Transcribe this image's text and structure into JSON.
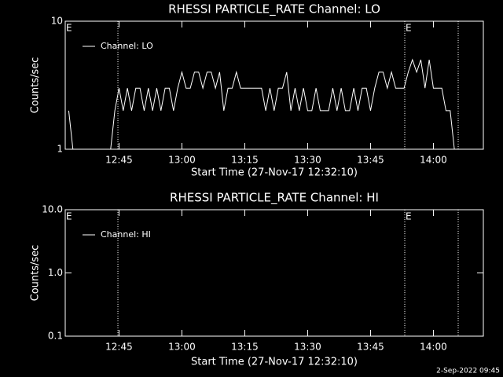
{
  "chart_data": [
    {
      "type": "line",
      "title": "RHESSI PARTICLE_RATE Channel: LO",
      "xlabel": "Start Time (27-Nov-17 12:32:10)",
      "ylabel": "Counts/sec",
      "xlim": [
        "12:32:10",
        "14:11:55"
      ],
      "xticks": [
        "12:45",
        "13:00",
        "13:15",
        "13:30",
        "13:45",
        "14:00"
      ],
      "ylim": [
        1,
        10
      ],
      "yticks": [
        1,
        10
      ],
      "log_y": true,
      "legend": "upper left",
      "vlines": [
        "12:44:44",
        "13:53:10",
        "14:05:55"
      ],
      "annotations": [
        {
          "text": "E",
          "x": "12:32:10"
        },
        {
          "text": "E",
          "x": "13:53:10"
        }
      ],
      "x": [
        "12:33",
        "12:34",
        "12:35",
        "12:36",
        "12:37",
        "12:38",
        "12:39",
        "12:40",
        "12:41",
        "12:42",
        "12:43",
        "12:44",
        "12:45",
        "12:46",
        "12:47",
        "12:48",
        "12:49",
        "12:50",
        "12:51",
        "12:52",
        "12:53",
        "12:54",
        "12:55",
        "12:56",
        "12:57",
        "12:58",
        "12:59",
        "13:00",
        "13:01",
        "13:02",
        "13:03",
        "13:04",
        "13:05",
        "13:06",
        "13:07",
        "13:08",
        "13:09",
        "13:10",
        "13:11",
        "13:12",
        "13:13",
        "13:14",
        "13:15",
        "13:16",
        "13:17",
        "13:18",
        "13:19",
        "13:20",
        "13:21",
        "13:22",
        "13:23",
        "13:24",
        "13:25",
        "13:26",
        "13:27",
        "13:28",
        "13:29",
        "13:30",
        "13:31",
        "13:32",
        "13:33",
        "13:34",
        "13:35",
        "13:36",
        "13:37",
        "13:38",
        "13:39",
        "13:40",
        "13:41",
        "13:42",
        "13:43",
        "13:44",
        "13:45",
        "13:46",
        "13:47",
        "13:48",
        "13:49",
        "13:50",
        "13:51",
        "13:52",
        "13:53",
        "13:54",
        "13:55",
        "13:56",
        "13:57",
        "13:58",
        "13:59",
        "14:00",
        "14:01",
        "14:02",
        "14:03",
        "14:04",
        "14:05"
      ],
      "series": [
        {
          "name": "Channel: LO",
          "color": "#ffffff",
          "values": [
            2,
            1,
            1,
            1,
            1,
            1,
            1,
            1,
            1,
            1,
            1,
            2,
            3,
            2,
            3,
            2,
            3,
            3,
            2,
            3,
            2,
            3,
            2,
            3,
            3,
            2,
            3,
            4,
            3,
            3,
            4,
            4,
            3,
            4,
            4,
            3,
            4,
            2,
            3,
            3,
            4,
            3,
            3,
            3,
            3,
            3,
            3,
            2,
            3,
            2,
            3,
            3,
            4,
            2,
            3,
            2,
            3,
            2,
            2,
            3,
            2,
            2,
            2,
            3,
            2,
            3,
            2,
            2,
            3,
            2,
            3,
            3,
            2,
            3,
            4,
            4,
            3,
            4,
            3,
            3,
            3,
            4,
            5,
            4,
            5,
            3,
            5,
            3,
            3,
            3,
            2,
            2,
            1
          ]
        }
      ]
    },
    {
      "type": "line",
      "title": "RHESSI PARTICLE_RATE Channel: HI",
      "xlabel": "Start Time (27-Nov-17 12:32:10)",
      "ylabel": "Counts/sec",
      "xlim": [
        "12:32:10",
        "14:11:55"
      ],
      "xticks": [
        "12:45",
        "13:00",
        "13:15",
        "13:30",
        "13:45",
        "14:00"
      ],
      "ylim": [
        0.1,
        10
      ],
      "yticks": [
        0.1,
        {
          "value": 1,
          "label": "1.0"
        },
        {
          "value": 10,
          "label": "10.0"
        }
      ],
      "log_y": true,
      "legend": "upper left",
      "vlines": [
        "12:44:44",
        "13:53:10",
        "14:05:55"
      ],
      "annotations": [
        {
          "text": "E",
          "x": "12:32:10"
        },
        {
          "text": "E",
          "x": "13:53:10"
        }
      ],
      "x": [],
      "series": [
        {
          "name": "Channel: HI",
          "color": "#ffffff",
          "values": []
        }
      ]
    }
  ],
  "footer": "2-Sep-2022 09:45"
}
